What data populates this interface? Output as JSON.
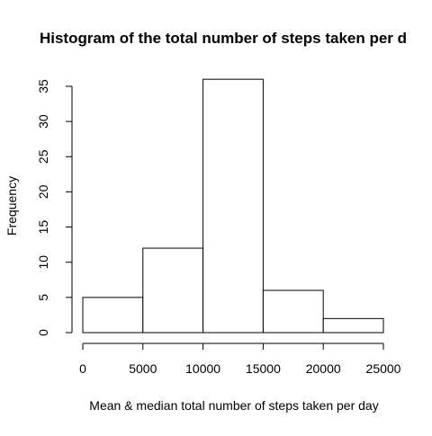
{
  "chart_data": {
    "type": "bar",
    "title": "Histogram of the total number of steps taken per d",
    "xlabel": "Mean & median total number of steps taken per day",
    "ylabel": "Frequency",
    "bins": [
      {
        "from": 0,
        "to": 5000,
        "count": 5
      },
      {
        "from": 5000,
        "to": 10000,
        "count": 12
      },
      {
        "from": 10000,
        "to": 15000,
        "count": 36
      },
      {
        "from": 15000,
        "to": 20000,
        "count": 6
      },
      {
        "from": 20000,
        "to": 25000,
        "count": 2
      }
    ],
    "xticks": [
      0,
      5000,
      10000,
      15000,
      20000,
      25000
    ],
    "xtick_labels": [
      "0",
      "5000",
      "10000",
      "15000",
      "20000",
      "25000"
    ],
    "yticks": [
      0,
      5,
      10,
      15,
      20,
      25,
      30,
      35
    ],
    "ytick_labels": [
      "0",
      "5",
      "10",
      "15",
      "20",
      "25",
      "30",
      "35"
    ],
    "xlim": [
      0,
      25000
    ],
    "ylim": [
      0,
      35
    ],
    "grid": false,
    "bar_fill": "#ffffff",
    "bar_stroke": "#000000"
  }
}
